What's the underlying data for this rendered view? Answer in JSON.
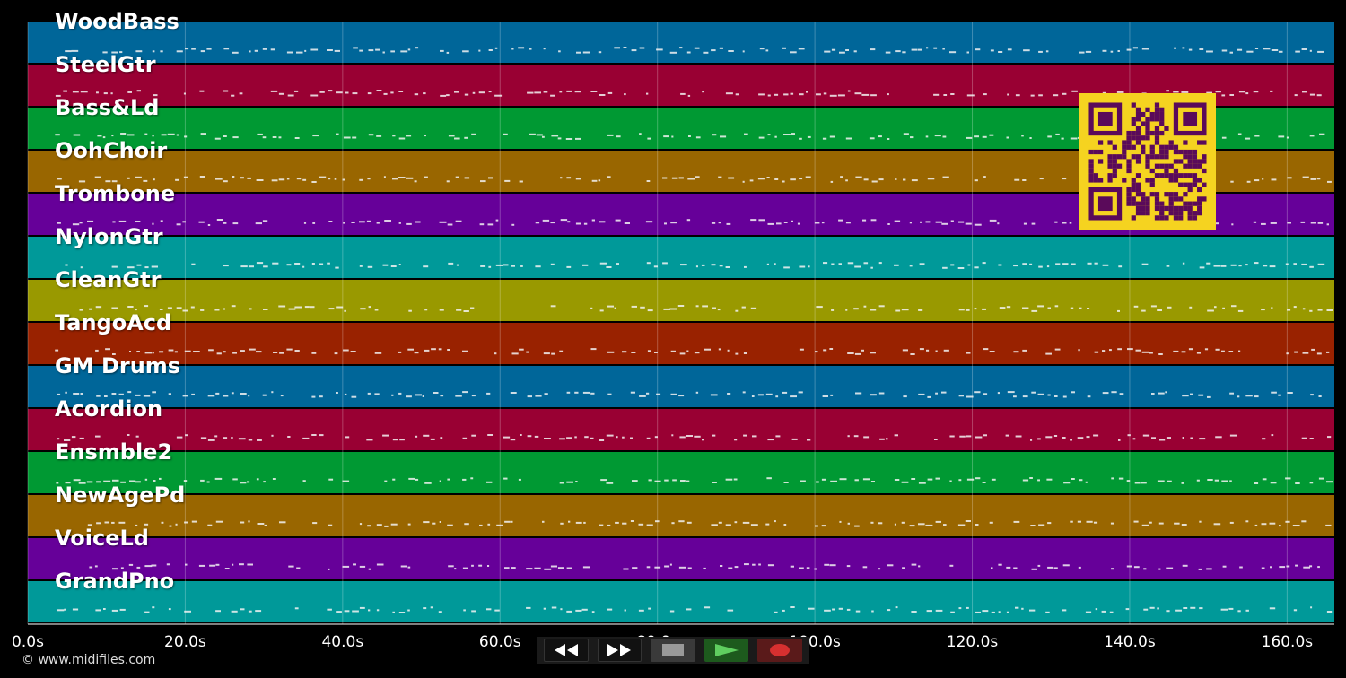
{
  "tracks": [
    {
      "name": "WoodBass",
      "color": "#006699"
    },
    {
      "name": "SteelGtr",
      "color": "#990033"
    },
    {
      "name": "Bass&Ld",
      "color": "#009933"
    },
    {
      "name": "OohChoir",
      "color": "#996600"
    },
    {
      "name": "Trombone",
      "color": "#660099"
    },
    {
      "name": "NylonGtr",
      "color": "#009999"
    },
    {
      "name": "CleanGtr",
      "color": "#999900"
    },
    {
      "name": "TangoAcd",
      "color": "#992200"
    },
    {
      "name": "GM Drums",
      "color": "#006699"
    },
    {
      "name": "Acordion",
      "color": "#990033"
    },
    {
      "name": "Ensmble2",
      "color": "#009933"
    },
    {
      "name": "NewAgePd",
      "color": "#996600"
    },
    {
      "name": "VoiceLd",
      "color": "#660099"
    },
    {
      "name": "GrandPno",
      "color": "#009999"
    }
  ],
  "timeline": {
    "tick_labels": [
      "0.0s",
      "20.0s",
      "40.0s",
      "60.0s",
      "80.0s",
      "100.0s",
      "120.0s",
      "140.0s",
      "160.0s"
    ],
    "max_seconds": 166
  },
  "copyright": "© www.midifiles.com",
  "controls": {
    "rewind_icon": "rewind-icon",
    "fast_forward_icon": "fast-forward-icon",
    "stop_icon": "stop-icon",
    "play_icon": "play-icon",
    "record_icon": "record-icon"
  },
  "colors": {
    "background": "#000000",
    "qr_foreground": "#5a0a5a",
    "qr_background": "#f5d320"
  }
}
